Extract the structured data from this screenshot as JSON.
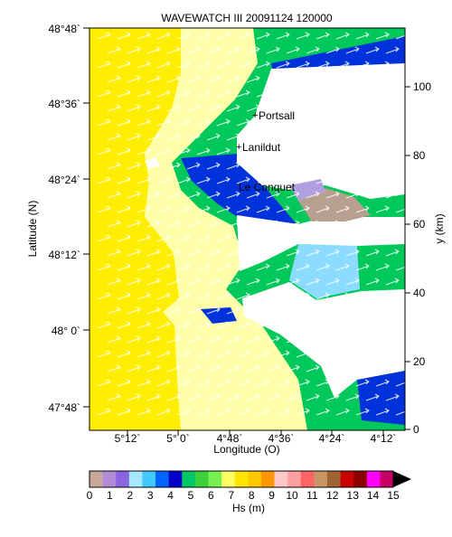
{
  "title": "WAVEWATCH III 20091124  120000",
  "xaxis": {
    "label": "Longitude (O)",
    "ticks": [
      "5°12`",
      "5° 0`",
      "4°48`",
      "4°36`",
      "4°24`",
      "4°12`"
    ]
  },
  "yaxis_left": {
    "label": "Latitude (N)",
    "ticks": [
      "48°48`",
      "48°36`",
      "48°24`",
      "48°12`",
      "48° 0`",
      "47°48`"
    ]
  },
  "yaxis_right": {
    "label": "y (km)",
    "ticks": [
      "100",
      "80",
      "60",
      "40",
      "20",
      "0"
    ]
  },
  "places": [
    {
      "name": "Portsall"
    },
    {
      "name": "Lanildut"
    },
    {
      "name": "Le Conquet"
    }
  ],
  "colorbar": {
    "label": "Hs (m)",
    "ticks": [
      "0",
      "1",
      "2",
      "3",
      "4",
      "5",
      "6",
      "7",
      "8",
      "9",
      "10",
      "11",
      "12",
      "13",
      "14",
      "15"
    ],
    "range": [
      0,
      15
    ],
    "colors": [
      "#c8a898",
      "#b08cd8",
      "#8c64e0",
      "#a8e8ff",
      "#40c8ff",
      "#0064ff",
      "#0000c8",
      "#00c864",
      "#3cd23c",
      "#78f050",
      "#ffff64",
      "#ffe600",
      "#ffc800",
      "#ff9600",
      "#ffc8c8",
      "#ffa0a0",
      "#ff6464",
      "#c89664",
      "#a06432",
      "#c80000",
      "#8c0000",
      "#ff00ff",
      "#c80064"
    ]
  },
  "colors": {
    "land": "#ffffff",
    "land_rock": "#b8a090",
    "sea_deep": "#ffee00",
    "sea_mid": "#ffffaa",
    "sea_near": "#00c85a",
    "sea_shallow": "#0032dc",
    "sea_light": "#8cdcff",
    "arrow": "#ffffff"
  }
}
